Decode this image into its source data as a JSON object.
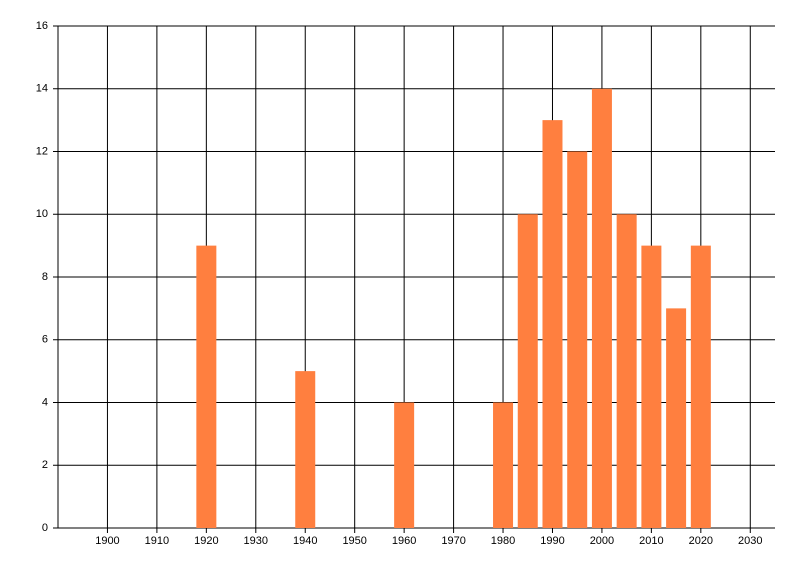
{
  "chart_data": {
    "type": "bar",
    "x": [
      1920,
      1940,
      1960,
      1980,
      1985,
      1990,
      1995,
      2000,
      2005,
      2010,
      2015,
      2020
    ],
    "values": [
      9,
      5,
      4,
      4,
      10,
      13,
      12,
      14,
      10,
      9,
      7,
      9
    ],
    "color": "#ff7f3f",
    "xlim": [
      1890,
      2035
    ],
    "xticks": [
      1900,
      1910,
      1920,
      1930,
      1940,
      1950,
      1960,
      1970,
      1980,
      1990,
      2000,
      2010,
      2020,
      2030
    ],
    "ylim": [
      0,
      16
    ],
    "yticks": [
      0,
      2,
      4,
      6,
      8,
      10,
      12,
      14,
      16
    ],
    "grid": true
  }
}
